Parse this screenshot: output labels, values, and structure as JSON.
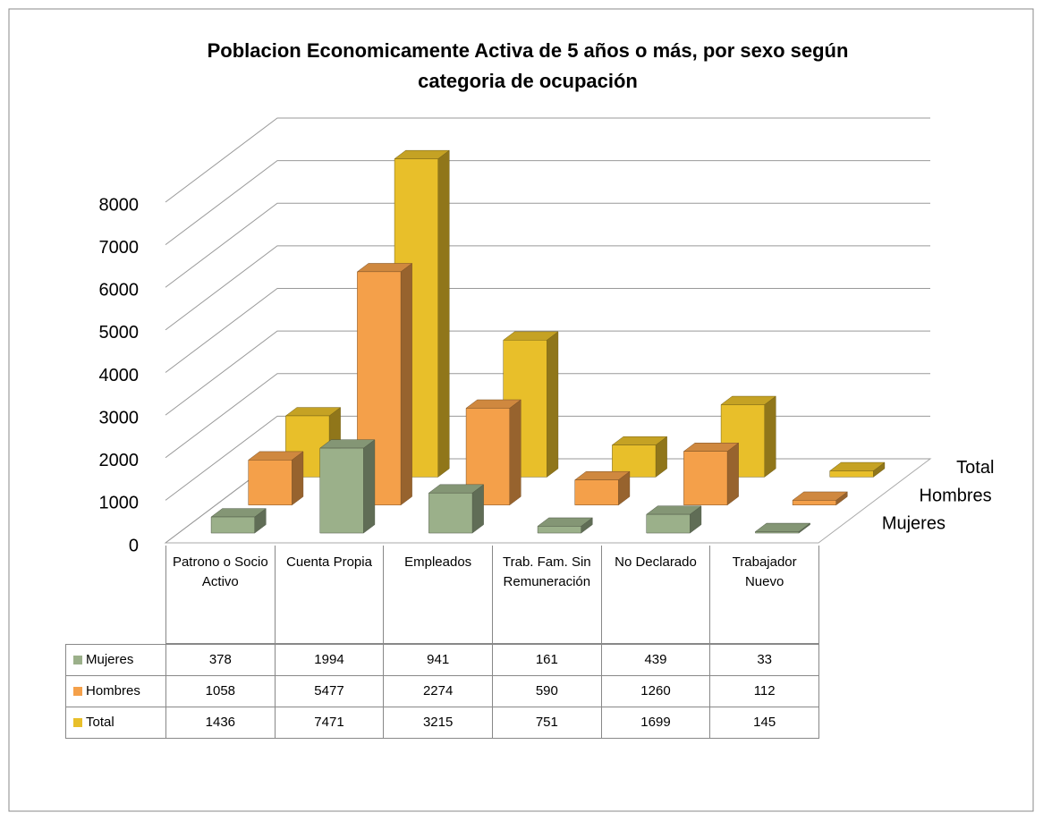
{
  "chart_data": {
    "type": "bar3d",
    "title": "Poblacion Economicamente Activa de 5 años o más, por sexo según categoria de  ocupación",
    "categories": [
      "Patrono o Socio Activo",
      "Cuenta Propia",
      "Empleados",
      "Trab. Fam. Sin Remuneración",
      "No Declarado",
      "Trabajador Nuevo"
    ],
    "series": [
      {
        "name": "Mujeres",
        "color": "#9bb08a",
        "values": [
          378,
          1994,
          941,
          161,
          439,
          33
        ]
      },
      {
        "name": "Hombres",
        "color": "#f4a04a",
        "values": [
          1058,
          5477,
          2274,
          590,
          1260,
          112
        ]
      },
      {
        "name": "Total",
        "color": "#e8bf2a",
        "values": [
          1436,
          7471,
          3215,
          751,
          1699,
          145
        ]
      }
    ],
    "ylim": [
      0,
      8000
    ],
    "yticks": [
      0,
      1000,
      2000,
      3000,
      4000,
      5000,
      6000,
      7000,
      8000
    ],
    "grid": true
  }
}
